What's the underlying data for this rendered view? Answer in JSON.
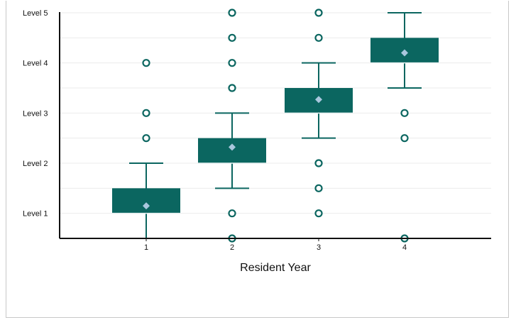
{
  "chart_data": {
    "type": "box",
    "title": "",
    "xlabel": "Resident Year",
    "ylabel": "",
    "categories": [
      "1",
      "2",
      "3",
      "4"
    ],
    "y_ticks": [
      {
        "value": 1,
        "label": "Level 1"
      },
      {
        "value": 2,
        "label": "Level 2"
      },
      {
        "value": 3,
        "label": "Level 3"
      },
      {
        "value": 4,
        "label": "Level 4"
      },
      {
        "value": 5,
        "label": "Level 5"
      }
    ],
    "ylim": [
      0.5,
      5
    ],
    "grid": true,
    "colors": {
      "box": "#0b6660",
      "mean_marker": "#a9c7dd",
      "outlier": "#0b6660"
    },
    "boxes": [
      {
        "category": "1",
        "whisker_low": 0.5,
        "q1": 1.0,
        "median": 1.0,
        "q3": 1.5,
        "whisker_high": 2.0,
        "mean": 1.15,
        "outliers": [
          2.5,
          3.0,
          4.0
        ]
      },
      {
        "category": "2",
        "whisker_low": 1.5,
        "q1": 2.0,
        "median": 2.0,
        "q3": 2.5,
        "whisker_high": 3.0,
        "mean": 2.32,
        "outliers": [
          0.5,
          1.0,
          3.5,
          4.0,
          4.5,
          5.0
        ]
      },
      {
        "category": "3",
        "whisker_low": 2.5,
        "q1": 3.0,
        "median": 3.0,
        "q3": 3.5,
        "whisker_high": 4.0,
        "mean": 3.27,
        "outliers": [
          1.0,
          1.5,
          2.0,
          4.5,
          5.0
        ]
      },
      {
        "category": "4",
        "whisker_low": 3.5,
        "q1": 4.0,
        "median": 4.0,
        "q3": 4.5,
        "whisker_high": 5.0,
        "mean": 4.2,
        "outliers": [
          0.5,
          2.5,
          3.0
        ]
      }
    ]
  }
}
